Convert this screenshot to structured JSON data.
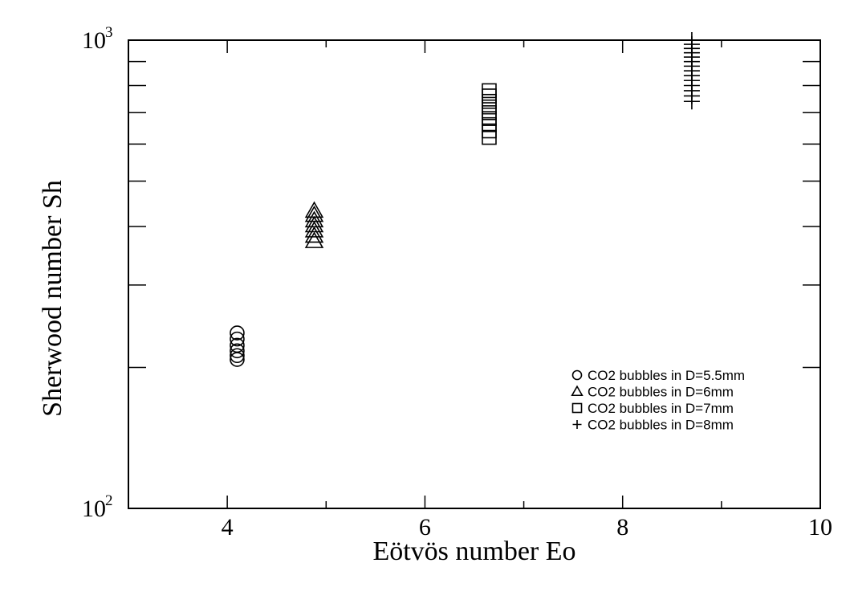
{
  "chart_data": {
    "type": "scatter",
    "xlabel": "Eötvös number Eo",
    "ylabel": "Sherwood number Sh",
    "xlim": [
      3,
      10
    ],
    "ylim": [
      100,
      1000
    ],
    "yscale": "log",
    "grid": false,
    "legend_position": "lower-right",
    "x_ticks": [
      4,
      6,
      8,
      10
    ],
    "x_tick_labels": [
      "4",
      "6",
      "8",
      "10"
    ],
    "y_major_ticks": [
      {
        "value": 100,
        "base": "10",
        "exp": "2"
      },
      {
        "value": 1000,
        "base": "10",
        "exp": "3"
      }
    ],
    "series": [
      {
        "name": "CO2 bubbles in D=5.5mm",
        "marker": "circle",
        "points": [
          [
            4.1,
            208
          ],
          [
            4.1,
            212
          ],
          [
            4.1,
            217
          ],
          [
            4.1,
            223
          ],
          [
            4.1,
            230
          ],
          [
            4.1,
            237
          ]
        ]
      },
      {
        "name": "CO2 bubbles in D=6mm",
        "marker": "triangle",
        "points": [
          [
            4.88,
            372
          ],
          [
            4.88,
            382
          ],
          [
            4.88,
            392
          ],
          [
            4.88,
            402
          ],
          [
            4.88,
            412
          ],
          [
            4.88,
            423
          ],
          [
            4.88,
            432
          ]
        ]
      },
      {
        "name": "CO2 bubbles in D=7mm",
        "marker": "square",
        "points": [
          [
            6.65,
            620
          ],
          [
            6.65,
            640
          ],
          [
            6.65,
            660
          ],
          [
            6.65,
            680
          ],
          [
            6.65,
            700
          ],
          [
            6.65,
            720
          ],
          [
            6.65,
            740
          ],
          [
            6.65,
            760
          ],
          [
            6.65,
            780
          ]
        ]
      },
      {
        "name": "CO2 bubbles in D=8mm",
        "marker": "plus",
        "points": [
          [
            8.7,
            740
          ],
          [
            8.7,
            760
          ],
          [
            8.7,
            780
          ],
          [
            8.7,
            800
          ],
          [
            8.7,
            820
          ],
          [
            8.7,
            840
          ],
          [
            8.7,
            860
          ],
          [
            8.7,
            880
          ],
          [
            8.7,
            900
          ],
          [
            8.7,
            920
          ],
          [
            8.7,
            940
          ],
          [
            8.7,
            960
          ],
          [
            8.7,
            980
          ],
          [
            8.7,
            1000
          ]
        ]
      }
    ]
  }
}
